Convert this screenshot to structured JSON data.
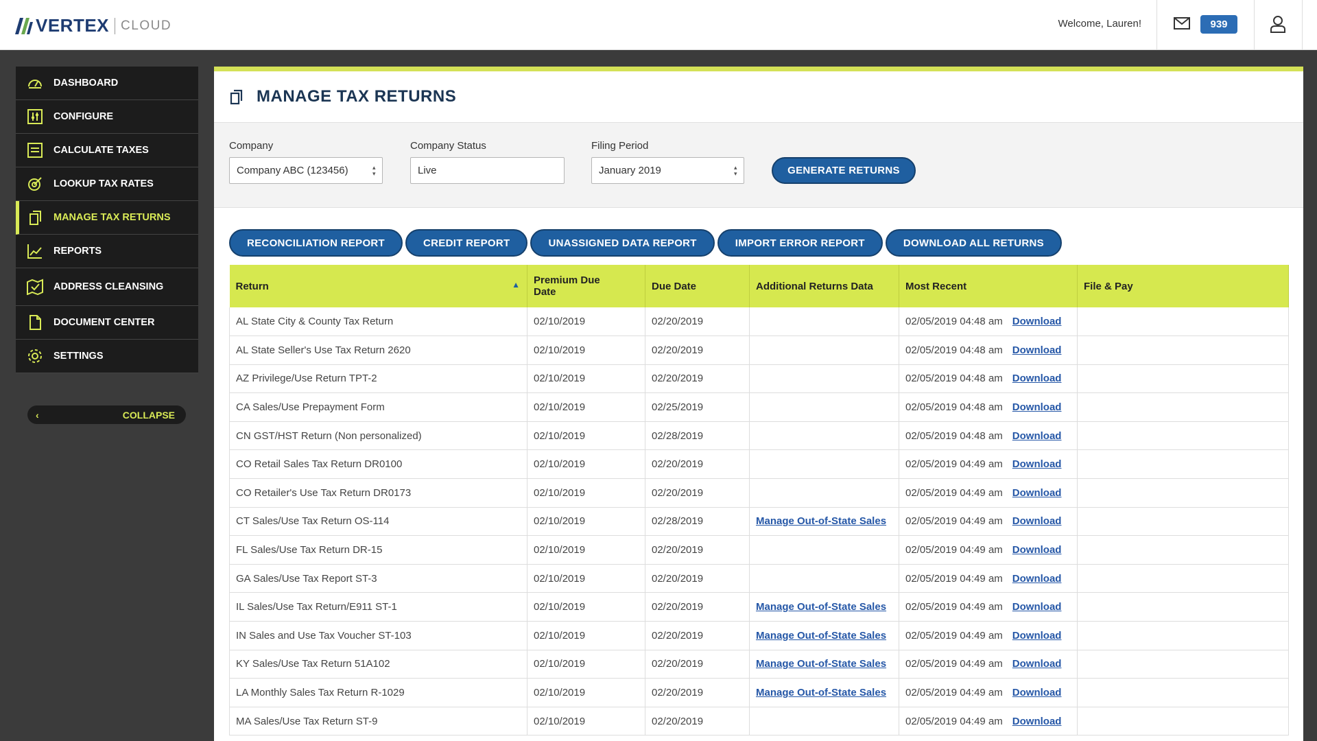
{
  "header": {
    "brand": "VERTEX",
    "brand_sub": "CLOUD",
    "welcome": "Welcome, Lauren!",
    "badge_count": "939"
  },
  "sidebar": {
    "items": [
      {
        "label": "DASHBOARD",
        "icon": "dashboard-gauge-icon"
      },
      {
        "label": "CONFIGURE",
        "icon": "sliders-icon"
      },
      {
        "label": "CALCULATE TAXES",
        "icon": "list-doc-icon"
      },
      {
        "label": "LOOKUP TAX RATES",
        "icon": "target-icon"
      },
      {
        "label": "MANAGE TAX RETURNS",
        "icon": "documents-icon"
      },
      {
        "label": "REPORTS",
        "icon": "line-chart-icon"
      },
      {
        "label": "ADDRESS CLEANSING",
        "icon": "map-check-icon"
      },
      {
        "label": "DOCUMENT CENTER",
        "icon": "file-icon"
      },
      {
        "label": "SETTINGS",
        "icon": "gear-icon"
      }
    ],
    "active": "MANAGE TAX RETURNS",
    "collapse_label": "COLLAPSE"
  },
  "page": {
    "title": "MANAGE TAX RETURNS"
  },
  "filters": {
    "company_label": "Company",
    "company_value": "Company ABC (123456)",
    "status_label": "Company Status",
    "status_value": "Live",
    "period_label": "Filing Period",
    "period_value": "January 2019",
    "generate_label": "GENERATE RETURNS"
  },
  "reports": {
    "buttons": [
      "RECONCILIATION REPORT",
      "CREDIT REPORT",
      "UNASSIGNED DATA REPORT",
      "IMPORT ERROR REPORT",
      "DOWNLOAD ALL RETURNS"
    ]
  },
  "table": {
    "columns": [
      "Return",
      "Premium Due Date",
      "Due Date",
      "Additional Returns Data",
      "Most Recent",
      "File & Pay"
    ],
    "download_label": "Download",
    "rows": [
      {
        "ret": "AL State City & County Tax Return",
        "premium": "02/10/2019",
        "due": "02/20/2019",
        "extra": "",
        "recent": "02/05/2019 04:48 am"
      },
      {
        "ret": "AL State Seller's Use Tax Return 2620",
        "premium": "02/10/2019",
        "due": "02/20/2019",
        "extra": "",
        "recent": "02/05/2019 04:48 am"
      },
      {
        "ret": "AZ Privilege/Use Return TPT-2",
        "premium": "02/10/2019",
        "due": "02/20/2019",
        "extra": "",
        "recent": "02/05/2019 04:48 am"
      },
      {
        "ret": "CA Sales/Use Prepayment Form",
        "premium": "02/10/2019",
        "due": "02/25/2019",
        "extra": "",
        "recent": "02/05/2019 04:48 am"
      },
      {
        "ret": "CN GST/HST Return (Non personalized)",
        "premium": "02/10/2019",
        "due": "02/28/2019",
        "extra": "",
        "recent": "02/05/2019 04:48 am"
      },
      {
        "ret": "CO Retail Sales Tax Return DR0100",
        "premium": "02/10/2019",
        "due": "02/20/2019",
        "extra": "",
        "recent": "02/05/2019 04:49 am"
      },
      {
        "ret": "CO Retailer's Use Tax Return DR0173",
        "premium": "02/10/2019",
        "due": "02/20/2019",
        "extra": "",
        "recent": "02/05/2019 04:49 am"
      },
      {
        "ret": "CT Sales/Use Tax Return OS-114",
        "premium": "02/10/2019",
        "due": "02/28/2019",
        "extra": "Manage Out-of-State Sales",
        "recent": "02/05/2019 04:49 am"
      },
      {
        "ret": "FL Sales/Use Tax Return DR-15",
        "premium": "02/10/2019",
        "due": "02/20/2019",
        "extra": "",
        "recent": "02/05/2019 04:49 am"
      },
      {
        "ret": "GA Sales/Use Tax Report ST-3",
        "premium": "02/10/2019",
        "due": "02/20/2019",
        "extra": "",
        "recent": "02/05/2019 04:49 am"
      },
      {
        "ret": "IL Sales/Use Tax Return/E911 ST-1",
        "premium": "02/10/2019",
        "due": "02/20/2019",
        "extra": "Manage Out-of-State Sales",
        "recent": "02/05/2019 04:49 am"
      },
      {
        "ret": "IN Sales and Use Tax Voucher ST-103",
        "premium": "02/10/2019",
        "due": "02/20/2019",
        "extra": "Manage Out-of-State Sales",
        "recent": "02/05/2019 04:49 am"
      },
      {
        "ret": "KY Sales/Use Tax Return 51A102",
        "premium": "02/10/2019",
        "due": "02/20/2019",
        "extra": "Manage Out-of-State Sales",
        "recent": "02/05/2019 04:49 am"
      },
      {
        "ret": "LA Monthly Sales Tax Return R-1029",
        "premium": "02/10/2019",
        "due": "02/20/2019",
        "extra": "Manage Out-of-State Sales",
        "recent": "02/05/2019 04:49 am"
      },
      {
        "ret": "MA Sales/Use Tax Return ST-9",
        "premium": "02/10/2019",
        "due": "02/20/2019",
        "extra": "",
        "recent": "02/05/2019 04:49 am"
      }
    ]
  },
  "colors": {
    "accent_lime": "#d6e84f",
    "primary_blue": "#1f5fa0",
    "sidebar_bg": "#1c1c1c",
    "title_navy": "#1b3553"
  }
}
